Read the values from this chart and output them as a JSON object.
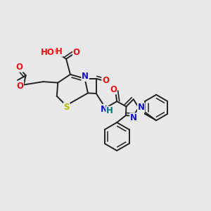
{
  "bg_color": "#e8e8e8",
  "bond_color": "#222222",
  "bond_width": 1.4,
  "dbo": 0.012,
  "atom_colors": {
    "O": "#ee1111",
    "N": "#1111cc",
    "S": "#bbbb00",
    "H": "#007777",
    "C": "#222222"
  },
  "fs": 8.5
}
